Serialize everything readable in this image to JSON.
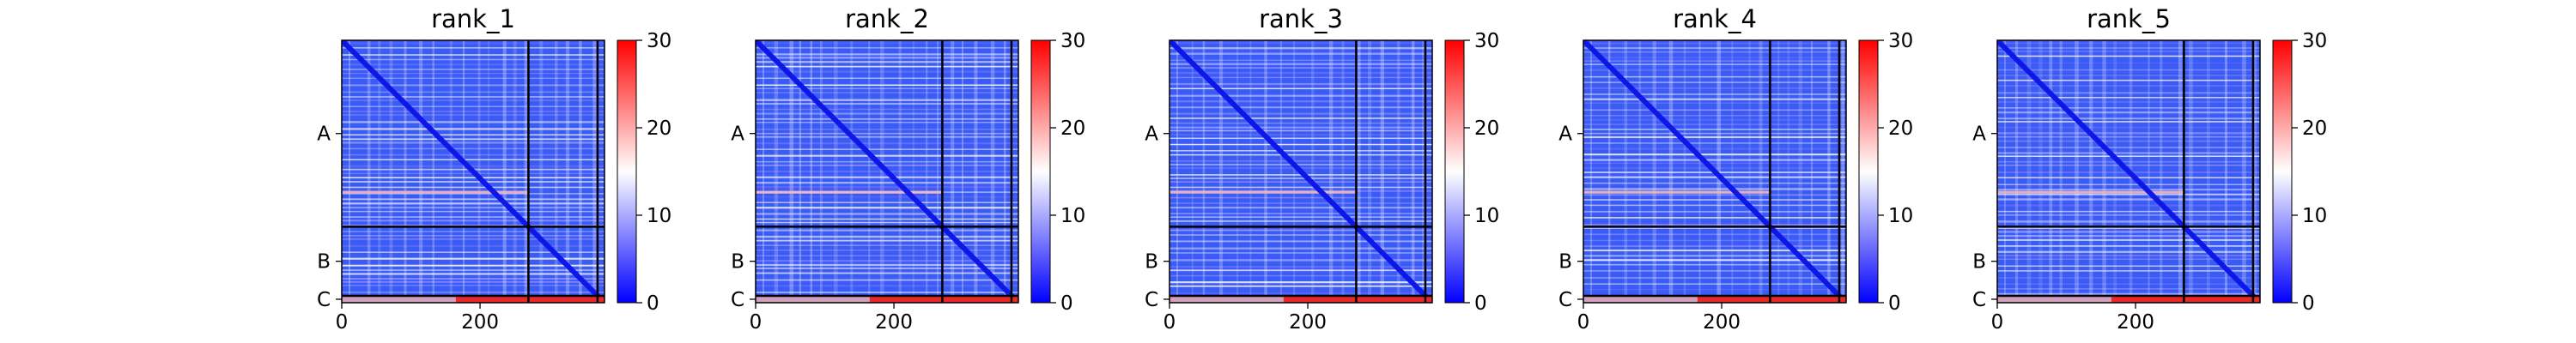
{
  "chart_data": {
    "type": "heatmap",
    "colormap": "bwr",
    "color_min": "#0000ff",
    "color_mid": "#ffffff",
    "color_max": "#ff0000",
    "chain_labels": [
      "A",
      "B",
      "C"
    ],
    "chain_boundaries": [
      270,
      370
    ],
    "total_residues": 380,
    "x_ticks": [
      0,
      200
    ],
    "x_tick_labels": [
      "0",
      "200"
    ],
    "colorbar_range": [
      0,
      30
    ],
    "colorbar_ticks": [
      0,
      10,
      20,
      30
    ],
    "colorbar_tick_labels": [
      "0",
      "10",
      "20",
      "30"
    ],
    "panels": [
      {
        "title": "rank_1"
      },
      {
        "title": "rank_2"
      },
      {
        "title": "rank_3"
      },
      {
        "title": "rank_4"
      },
      {
        "title": "rank_5"
      }
    ]
  }
}
